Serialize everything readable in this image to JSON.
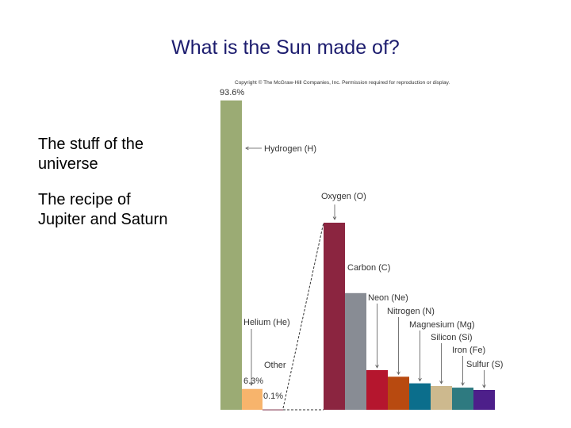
{
  "slide": {
    "title": "What is the Sun made of?",
    "bullets": [
      "The stuff of the universe",
      "The recipe of Jupiter and Saturn"
    ]
  },
  "chart_data": {
    "type": "bar",
    "credit": "Copyright © The McGraw-Hill Companies, Inc. Permission required for reproduction or display.",
    "categories": [
      "Hydrogen (H)",
      "Helium (He)",
      "Other"
    ],
    "values": [
      93.6,
      6.3,
      0.1
    ],
    "value_labels": [
      "93.6%",
      "6.3%",
      "0.1%"
    ],
    "colors": [
      "#9bab74",
      "#f7b46c",
      "#7a2a44"
    ],
    "ylim": [
      0,
      100
    ],
    "detail": {
      "categories": [
        "Oxygen (O)",
        "Carbon (C)",
        "Neon (Ne)",
        "Nitrogen (N)",
        "Magnesium (Mg)",
        "Silicon (Si)",
        "Iron (Fe)",
        "Sulfur (S)"
      ],
      "values": [
        56.6,
        35.3,
        12,
        10,
        8,
        7.2,
        6.7,
        6
      ],
      "colors": [
        "#8b2540",
        "#888c94",
        "#b5162e",
        "#b84a10",
        "#0b6e8c",
        "#cdb98e",
        "#2e7a80",
        "#4d1f8a"
      ]
    }
  }
}
